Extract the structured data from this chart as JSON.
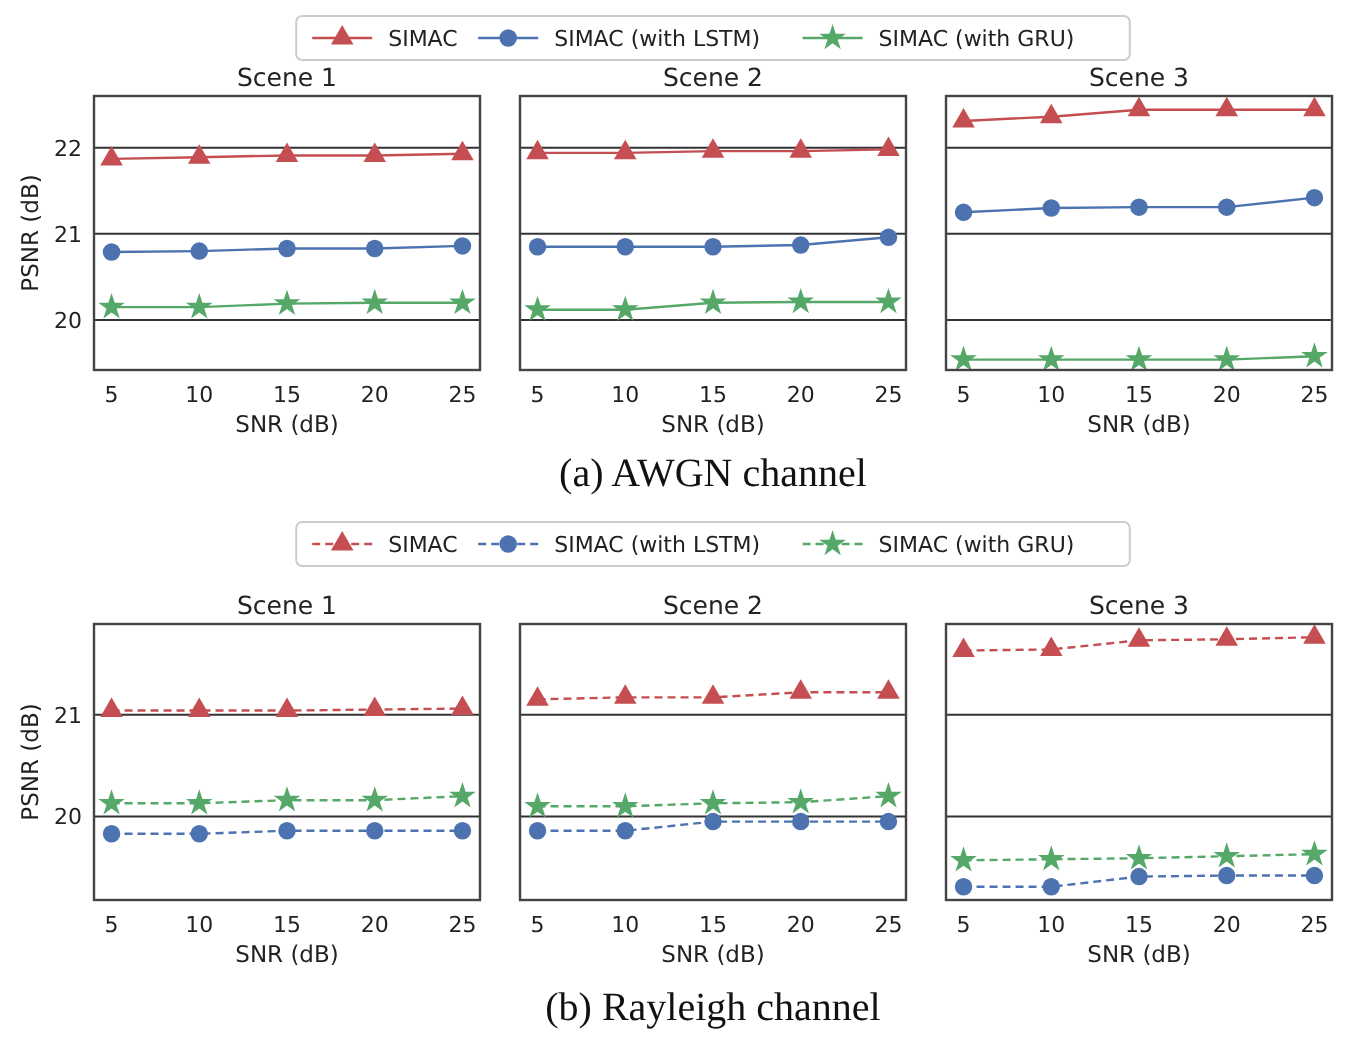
{
  "chart_data": [
    {
      "type": "line",
      "title": "Scene 1",
      "xlabel": "SNR (dB)",
      "ylabel": "PSNR (dB)",
      "x": [
        5,
        10,
        15,
        20,
        25
      ],
      "xlim": [
        4,
        26
      ],
      "xticks": [
        5,
        10,
        15,
        20,
        25
      ],
      "ylim": [
        19.42,
        22.6
      ],
      "yticks": [
        20,
        21,
        22
      ],
      "grid": "y",
      "legend": "top",
      "line_style": "solid",
      "annotations": [
        "(a) AWGN channel"
      ],
      "series": [
        {
          "name": "SIMAC",
          "color": "#c44e52",
          "marker": "triangle",
          "values": [
            21.87,
            21.89,
            21.91,
            21.91,
            21.93
          ]
        },
        {
          "name": "SIMAC (with LSTM)",
          "color": "#4c72b0",
          "marker": "circle",
          "values": [
            20.79,
            20.8,
            20.83,
            20.83,
            20.86
          ]
        },
        {
          "name": "SIMAC (with GRU)",
          "color": "#55a868",
          "marker": "star",
          "values": [
            20.15,
            20.15,
            20.19,
            20.2,
            20.2
          ]
        }
      ]
    },
    {
      "type": "line",
      "title": "Scene 2",
      "xlabel": "SNR (dB)",
      "x": [
        5,
        10,
        15,
        20,
        25
      ],
      "xlim": [
        4,
        26
      ],
      "xticks": [
        5,
        10,
        15,
        20,
        25
      ],
      "ylim": [
        19.42,
        22.6
      ],
      "yticks": [
        20,
        21,
        22
      ],
      "tick_labels": "x",
      "grid": "y",
      "line_style": "solid",
      "series": [
        {
          "color": "#c44e52",
          "marker": "triangle",
          "values": [
            21.94,
            21.94,
            21.96,
            21.96,
            21.98
          ]
        },
        {
          "color": "#4c72b0",
          "marker": "circle",
          "values": [
            20.85,
            20.85,
            20.85,
            20.87,
            20.96
          ]
        },
        {
          "color": "#55a868",
          "marker": "star",
          "values": [
            20.12,
            20.12,
            20.2,
            20.21,
            20.21
          ]
        }
      ]
    },
    {
      "type": "line",
      "title": "Scene 3",
      "xlabel": "SNR (dB)",
      "x": [
        5,
        10,
        15,
        20,
        25
      ],
      "xlim": [
        4,
        26
      ],
      "xticks": [
        5,
        10,
        15,
        20,
        25
      ],
      "ylim": [
        19.42,
        22.6
      ],
      "yticks": [
        20,
        21,
        22
      ],
      "tick_labels": "x",
      "grid": "y",
      "line_style": "solid",
      "series": [
        {
          "color": "#c44e52",
          "marker": "triangle",
          "values": [
            22.31,
            22.36,
            22.44,
            22.44,
            22.44
          ]
        },
        {
          "color": "#4c72b0",
          "marker": "circle",
          "values": [
            21.25,
            21.3,
            21.31,
            21.31,
            21.42
          ]
        },
        {
          "color": "#55a868",
          "marker": "star",
          "values": [
            19.54,
            19.54,
            19.54,
            19.54,
            19.58
          ]
        }
      ]
    },
    {
      "type": "line",
      "title": "Scene 1",
      "xlabel": "SNR (dB)",
      "ylabel": "PSNR (dB)",
      "x": [
        5,
        10,
        15,
        20,
        25
      ],
      "xlim": [
        4,
        26
      ],
      "xticks": [
        5,
        10,
        15,
        20,
        25
      ],
      "ylim": [
        19.18,
        21.89
      ],
      "yticks": [
        20,
        21
      ],
      "grid": "y",
      "legend": "top",
      "line_style": "dashed",
      "annotations": [
        "(b) Rayleigh channel"
      ],
      "series": [
        {
          "name": "SIMAC",
          "color": "#c44e52",
          "marker": "triangle",
          "values": [
            21.04,
            21.04,
            21.04,
            21.05,
            21.06
          ]
        },
        {
          "name": "SIMAC (with LSTM)",
          "color": "#4c72b0",
          "marker": "circle",
          "values": [
            19.83,
            19.83,
            19.86,
            19.86,
            19.86
          ]
        },
        {
          "name": "SIMAC (with GRU)",
          "color": "#55a868",
          "marker": "star",
          "values": [
            20.13,
            20.13,
            20.16,
            20.16,
            20.2
          ]
        }
      ]
    },
    {
      "type": "line",
      "title": "Scene 2",
      "xlabel": "SNR (dB)",
      "x": [
        5,
        10,
        15,
        20,
        25
      ],
      "xlim": [
        4,
        26
      ],
      "xticks": [
        5,
        10,
        15,
        20,
        25
      ],
      "ylim": [
        19.18,
        21.89
      ],
      "yticks": [
        20,
        21
      ],
      "tick_labels": "x",
      "grid": "y",
      "line_style": "dashed",
      "series": [
        {
          "color": "#c44e52",
          "marker": "triangle",
          "values": [
            21.15,
            21.17,
            21.17,
            21.22,
            21.22
          ]
        },
        {
          "color": "#4c72b0",
          "marker": "circle",
          "values": [
            19.86,
            19.86,
            19.95,
            19.95,
            19.95
          ]
        },
        {
          "color": "#55a868",
          "marker": "star",
          "values": [
            20.1,
            20.1,
            20.13,
            20.14,
            20.2
          ]
        }
      ]
    },
    {
      "type": "line",
      "title": "Scene 3",
      "xlabel": "SNR (dB)",
      "x": [
        5,
        10,
        15,
        20,
        25
      ],
      "xlim": [
        4,
        26
      ],
      "xticks": [
        5,
        10,
        15,
        20,
        25
      ],
      "ylim": [
        19.18,
        21.89
      ],
      "yticks": [
        20,
        21
      ],
      "tick_labels": "x",
      "grid": "y",
      "line_style": "dashed",
      "series": [
        {
          "color": "#c44e52",
          "marker": "triangle",
          "values": [
            21.63,
            21.64,
            21.73,
            21.74,
            21.76
          ]
        },
        {
          "color": "#4c72b0",
          "marker": "circle",
          "values": [
            19.31,
            19.31,
            19.41,
            19.42,
            19.42
          ]
        },
        {
          "color": "#55a868",
          "marker": "star",
          "values": [
            19.57,
            19.58,
            19.59,
            19.61,
            19.63
          ]
        }
      ]
    }
  ]
}
